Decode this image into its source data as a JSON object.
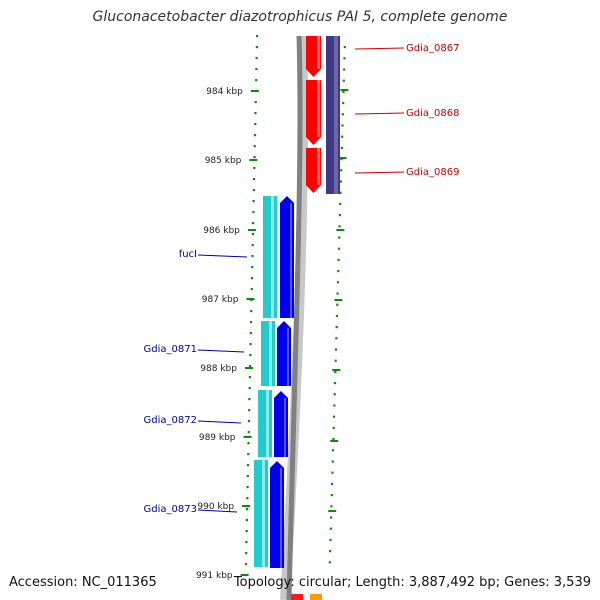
{
  "title": "Gluconacetobacter diazotrophicus PAI 5, complete genome",
  "footer": {
    "accession": "Accession: NC_011365",
    "summary": "Topology: circular; Length: 3,887,492 bp; Genes: 3,539"
  },
  "colors": {
    "plus_label": "#cc0000",
    "minus_label": "#0000aa",
    "red_gene": "#ff0000",
    "navy_gene": "#3f3a87",
    "teal_gene": "#22cccc",
    "blue_gene": "#0000ee",
    "tick": "#118811",
    "backbone": "#808080",
    "backbone_light": "#c8c8c8",
    "bottom_red": "#ff1a1a",
    "bottom_orange": "#ff9a00"
  },
  "ticks": [
    "984 kbp",
    "985 kbp",
    "986 kbp",
    "987 kbp",
    "988 kbp",
    "989 kbp",
    "990 kbp",
    "991 kbp"
  ],
  "genes": {
    "plus_strand": [
      {
        "name": "Gdia_0867",
        "color": "red_gene"
      },
      {
        "name": "Gdia_0868",
        "color": "red_gene"
      },
      {
        "name": "Gdia_0869",
        "color": "red_gene"
      }
    ],
    "minus_strand": [
      {
        "name": "fucI",
        "color": "blue_gene"
      },
      {
        "name": "Gdia_0871",
        "color": "blue_gene"
      },
      {
        "name": "Gdia_0872",
        "color": "blue_gene"
      },
      {
        "name": "Gdia_0873",
        "color": "blue_gene"
      }
    ]
  }
}
